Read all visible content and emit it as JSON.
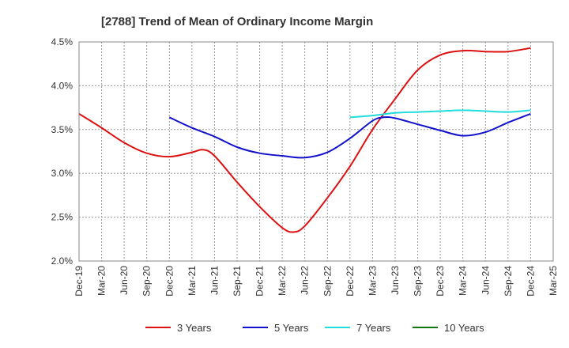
{
  "chart_data": {
    "type": "line",
    "title": "[2788]  Trend of Mean of Ordinary Income Margin",
    "xlabel": "",
    "ylabel": "",
    "x": [
      "Dec-19",
      "Mar-20",
      "Jun-20",
      "Sep-20",
      "Dec-20",
      "Mar-21",
      "Jun-21",
      "Sep-21",
      "Dec-21",
      "Mar-22",
      "Jun-22",
      "Sep-22",
      "Dec-22",
      "Mar-23",
      "Jun-23",
      "Sep-23",
      "Dec-23",
      "Mar-24",
      "Jun-24",
      "Sep-24",
      "Dec-24",
      "Mar-25"
    ],
    "ylim": [
      2.0,
      4.5
    ],
    "yticks": [
      "2.0%",
      "2.5%",
      "3.0%",
      "3.5%",
      "4.0%",
      "4.5%"
    ],
    "grid": true,
    "legend_position": "bottom",
    "series": [
      {
        "name": "3 Years",
        "color": "#dd1111",
        "points": [
          [
            0,
            3.68
          ],
          [
            1,
            3.52
          ],
          [
            2,
            3.35
          ],
          [
            3,
            3.23
          ],
          [
            4,
            3.19
          ],
          [
            5,
            3.24
          ],
          [
            5.5,
            3.27
          ],
          [
            6,
            3.2
          ],
          [
            7,
            2.9
          ],
          [
            8,
            2.62
          ],
          [
            9,
            2.38
          ],
          [
            9.5,
            2.33
          ],
          [
            10,
            2.4
          ],
          [
            11,
            2.72
          ],
          [
            12,
            3.08
          ],
          [
            13,
            3.5
          ],
          [
            14,
            3.85
          ],
          [
            15,
            4.18
          ],
          [
            16,
            4.35
          ],
          [
            17,
            4.4
          ],
          [
            18,
            4.39
          ],
          [
            19,
            4.39
          ],
          [
            20,
            4.43
          ]
        ]
      },
      {
        "name": "5 Years",
        "color": "#1111cc",
        "points": [
          [
            4,
            3.64
          ],
          [
            5,
            3.52
          ],
          [
            6,
            3.42
          ],
          [
            7,
            3.3
          ],
          [
            8,
            3.23
          ],
          [
            9,
            3.2
          ],
          [
            10,
            3.18
          ],
          [
            11,
            3.24
          ],
          [
            12,
            3.4
          ],
          [
            13,
            3.6
          ],
          [
            13.5,
            3.64
          ],
          [
            14,
            3.63
          ],
          [
            15,
            3.56
          ],
          [
            16,
            3.49
          ],
          [
            17,
            3.43
          ],
          [
            18,
            3.47
          ],
          [
            19,
            3.58
          ],
          [
            20,
            3.68
          ]
        ]
      },
      {
        "name": "7 Years",
        "color": "#22dddd",
        "points": [
          [
            12,
            3.64
          ],
          [
            13,
            3.66
          ],
          [
            14,
            3.69
          ],
          [
            15,
            3.7
          ],
          [
            16,
            3.71
          ],
          [
            17,
            3.72
          ],
          [
            18,
            3.71
          ],
          [
            19,
            3.7
          ],
          [
            20,
            3.72
          ]
        ]
      },
      {
        "name": "10 Years",
        "color": "#117711",
        "points": []
      }
    ]
  }
}
